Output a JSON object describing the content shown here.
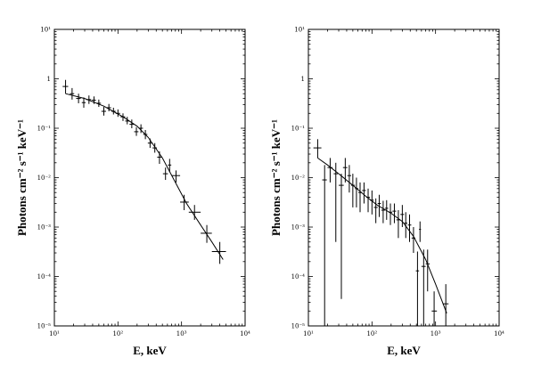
{
  "chart_data": [
    {
      "type": "scatter",
      "title": "",
      "xlabel": "E, keV",
      "ylabel": "Photons cm⁻² s⁻¹ keV⁻¹",
      "xscale": "log",
      "yscale": "log",
      "xlim": [
        10,
        10000
      ],
      "ylim": [
        1e-05,
        10
      ],
      "x_ticks": [
        {
          "label": "10¹"
        },
        {
          "label": "10²"
        },
        {
          "label": "10³"
        },
        {
          "label": "10⁴"
        }
      ],
      "y_ticks": [
        {
          "label": "10⁻⁵"
        },
        {
          "label": "10⁻⁴"
        },
        {
          "label": "10⁻³"
        },
        {
          "label": "10⁻²"
        },
        {
          "label": "10⁻¹"
        },
        {
          "label": "1"
        },
        {
          "label": "10¹"
        }
      ],
      "grid": false,
      "model": [
        {
          "x": 15,
          "y": 0.5
        },
        {
          "x": 30,
          "y": 0.4
        },
        {
          "x": 60,
          "y": 0.28
        },
        {
          "x": 120,
          "y": 0.17
        },
        {
          "x": 200,
          "y": 0.11
        },
        {
          "x": 300,
          "y": 0.065
        },
        {
          "x": 500,
          "y": 0.025
        },
        {
          "x": 800,
          "y": 0.008
        },
        {
          "x": 1200,
          "y": 0.003
        },
        {
          "x": 2000,
          "y": 0.0011
        },
        {
          "x": 3000,
          "y": 0.0005
        },
        {
          "x": 4500,
          "y": 0.00022
        }
      ],
      "points": [
        {
          "x": 15,
          "xlo": 13.5,
          "xhi": 16.5,
          "y": 0.7,
          "ylo": 0.5,
          "yhi": 0.95
        },
        {
          "x": 19,
          "xlo": 17.5,
          "xhi": 20.5,
          "y": 0.5,
          "ylo": 0.38,
          "yhi": 0.65
        },
        {
          "x": 24,
          "xlo": 22,
          "xhi": 26,
          "y": 0.4,
          "ylo": 0.32,
          "yhi": 0.5
        },
        {
          "x": 29,
          "xlo": 27,
          "xhi": 31,
          "y": 0.33,
          "ylo": 0.26,
          "yhi": 0.42
        },
        {
          "x": 35,
          "xlo": 32,
          "xhi": 38,
          "y": 0.38,
          "ylo": 0.31,
          "yhi": 0.46
        },
        {
          "x": 42,
          "xlo": 39,
          "xhi": 45,
          "y": 0.37,
          "ylo": 0.31,
          "yhi": 0.44
        },
        {
          "x": 50,
          "xlo": 46,
          "xhi": 54,
          "y": 0.32,
          "ylo": 0.27,
          "yhi": 0.38
        },
        {
          "x": 60,
          "xlo": 55,
          "xhi": 65,
          "y": 0.22,
          "ylo": 0.18,
          "yhi": 0.27
        },
        {
          "x": 72,
          "xlo": 66,
          "xhi": 78,
          "y": 0.26,
          "ylo": 0.22,
          "yhi": 0.31
        },
        {
          "x": 85,
          "xlo": 79,
          "xhi": 92,
          "y": 0.22,
          "ylo": 0.19,
          "yhi": 0.26
        },
        {
          "x": 100,
          "xlo": 92,
          "xhi": 108,
          "y": 0.2,
          "ylo": 0.17,
          "yhi": 0.24
        },
        {
          "x": 120,
          "xlo": 110,
          "xhi": 130,
          "y": 0.17,
          "ylo": 0.14,
          "yhi": 0.2
        },
        {
          "x": 140,
          "xlo": 130,
          "xhi": 150,
          "y": 0.14,
          "ylo": 0.12,
          "yhi": 0.17
        },
        {
          "x": 165,
          "xlo": 152,
          "xhi": 178,
          "y": 0.12,
          "ylo": 0.1,
          "yhi": 0.15
        },
        {
          "x": 195,
          "xlo": 180,
          "xhi": 210,
          "y": 0.085,
          "ylo": 0.07,
          "yhi": 0.105
        },
        {
          "x": 230,
          "xlo": 212,
          "xhi": 248,
          "y": 0.1,
          "ylo": 0.08,
          "yhi": 0.12
        },
        {
          "x": 270,
          "xlo": 250,
          "xhi": 290,
          "y": 0.075,
          "ylo": 0.06,
          "yhi": 0.092
        },
        {
          "x": 320,
          "xlo": 295,
          "xhi": 345,
          "y": 0.05,
          "ylo": 0.04,
          "yhi": 0.062
        },
        {
          "x": 380,
          "xlo": 350,
          "xhi": 410,
          "y": 0.04,
          "ylo": 0.032,
          "yhi": 0.05
        },
        {
          "x": 450,
          "xlo": 415,
          "xhi": 490,
          "y": 0.026,
          "ylo": 0.019,
          "yhi": 0.034
        },
        {
          "x": 560,
          "xlo": 510,
          "xhi": 610,
          "y": 0.012,
          "ylo": 0.009,
          "yhi": 0.016
        },
        {
          "x": 650,
          "xlo": 610,
          "xhi": 690,
          "y": 0.018,
          "ylo": 0.013,
          "yhi": 0.024
        },
        {
          "x": 820,
          "xlo": 700,
          "xhi": 950,
          "y": 0.011,
          "ylo": 0.008,
          "yhi": 0.014
        },
        {
          "x": 1100,
          "xlo": 950,
          "xhi": 1300,
          "y": 0.0032,
          "ylo": 0.0022,
          "yhi": 0.0045
        },
        {
          "x": 1600,
          "xlo": 1300,
          "xhi": 2000,
          "y": 0.002,
          "ylo": 0.0014,
          "yhi": 0.0028
        },
        {
          "x": 2500,
          "xlo": 2000,
          "xhi": 3000,
          "y": 0.00075,
          "ylo": 0.00048,
          "yhi": 0.0011
        },
        {
          "x": 4000,
          "xlo": 3000,
          "xhi": 5000,
          "y": 0.00032,
          "ylo": 0.00018,
          "yhi": 0.0005
        }
      ]
    },
    {
      "type": "scatter",
      "title": "",
      "xlabel": "E, keV",
      "ylabel": "Photons cm⁻² s⁻¹ keV⁻¹",
      "xscale": "log",
      "yscale": "log",
      "xlim": [
        10,
        10000
      ],
      "ylim": [
        1e-05,
        10
      ],
      "x_ticks": [
        {
          "label": "10¹"
        },
        {
          "label": "10²"
        },
        {
          "label": "10³"
        },
        {
          "label": "10⁴"
        }
      ],
      "y_ticks": [
        {
          "label": "10⁻⁵"
        },
        {
          "label": "10⁻⁴"
        },
        {
          "label": "10⁻³"
        },
        {
          "label": "10⁻²"
        },
        {
          "label": "10⁻¹"
        },
        {
          "label": "1"
        },
        {
          "label": "10¹"
        }
      ],
      "grid": false,
      "model": [
        {
          "x": 14,
          "y": 0.025
        },
        {
          "x": 20,
          "y": 0.018
        },
        {
          "x": 30,
          "y": 0.012
        },
        {
          "x": 50,
          "y": 0.007
        },
        {
          "x": 80,
          "y": 0.0042
        },
        {
          "x": 120,
          "y": 0.0028
        },
        {
          "x": 200,
          "y": 0.0019
        },
        {
          "x": 300,
          "y": 0.0013
        },
        {
          "x": 450,
          "y": 0.00065
        },
        {
          "x": 700,
          "y": 0.00022
        },
        {
          "x": 1000,
          "y": 7e-05
        },
        {
          "x": 1500,
          "y": 1.8e-05
        }
      ],
      "points": [
        {
          "x": 14,
          "xlo": 12,
          "xhi": 16,
          "y": 0.04,
          "ylo": 0.025,
          "yhi": 0.06
        },
        {
          "x": 18,
          "xlo": 16.5,
          "xhi": 19.5,
          "y": 0.009,
          "ylo": 1e-05,
          "yhi": 0.018
        },
        {
          "x": 22,
          "xlo": 20,
          "xhi": 24,
          "y": 0.016,
          "ylo": 0.008,
          "yhi": 0.025
        },
        {
          "x": 27,
          "xlo": 25,
          "xhi": 29,
          "y": 0.012,
          "ylo": 0.0005,
          "yhi": 0.02
        },
        {
          "x": 33,
          "xlo": 30,
          "xhi": 36,
          "y": 0.007,
          "ylo": 3.5e-05,
          "yhi": 0.012
        },
        {
          "x": 38,
          "xlo": 35,
          "xhi": 41,
          "y": 0.016,
          "ylo": 0.008,
          "yhi": 0.025
        },
        {
          "x": 44,
          "xlo": 41,
          "xhi": 47,
          "y": 0.011,
          "ylo": 0.005,
          "yhi": 0.018
        },
        {
          "x": 50,
          "xlo": 47,
          "xhi": 54,
          "y": 0.007,
          "ylo": 0.0025,
          "yhi": 0.012
        },
        {
          "x": 57,
          "xlo": 54,
          "xhi": 61,
          "y": 0.006,
          "ylo": 0.0025,
          "yhi": 0.01
        },
        {
          "x": 65,
          "xlo": 61,
          "xhi": 70,
          "y": 0.005,
          "ylo": 0.002,
          "yhi": 0.008
        },
        {
          "x": 75,
          "xlo": 70,
          "xhi": 80,
          "y": 0.0055,
          "ylo": 0.003,
          "yhi": 0.008
        },
        {
          "x": 87,
          "xlo": 81,
          "xhi": 93,
          "y": 0.004,
          "ylo": 0.002,
          "yhi": 0.006
        },
        {
          "x": 100,
          "xlo": 93,
          "xhi": 107,
          "y": 0.0035,
          "ylo": 0.0018,
          "yhi": 0.0055
        },
        {
          "x": 115,
          "xlo": 107,
          "xhi": 123,
          "y": 0.0025,
          "ylo": 0.0012,
          "yhi": 0.0038
        },
        {
          "x": 130,
          "xlo": 123,
          "xhi": 138,
          "y": 0.003,
          "ylo": 0.0016,
          "yhi": 0.0045
        },
        {
          "x": 150,
          "xlo": 140,
          "xhi": 160,
          "y": 0.0022,
          "ylo": 0.0012,
          "yhi": 0.0034
        },
        {
          "x": 170,
          "xlo": 160,
          "xhi": 180,
          "y": 0.0024,
          "ylo": 0.0014,
          "yhi": 0.0035
        },
        {
          "x": 195,
          "xlo": 182,
          "xhi": 208,
          "y": 0.002,
          "ylo": 0.0011,
          "yhi": 0.003
        },
        {
          "x": 225,
          "xlo": 210,
          "xhi": 240,
          "y": 0.0021,
          "ylo": 0.0012,
          "yhi": 0.003
        },
        {
          "x": 260,
          "xlo": 242,
          "xhi": 278,
          "y": 0.0014,
          "ylo": 0.0006,
          "yhi": 0.0022
        },
        {
          "x": 300,
          "xlo": 280,
          "xhi": 320,
          "y": 0.0018,
          "ylo": 0.001,
          "yhi": 0.0028
        },
        {
          "x": 340,
          "xlo": 322,
          "xhi": 360,
          "y": 0.0012,
          "ylo": 0.0006,
          "yhi": 0.002
        },
        {
          "x": 390,
          "xlo": 365,
          "xhi": 415,
          "y": 0.0011,
          "ylo": 0.0005,
          "yhi": 0.0018
        },
        {
          "x": 450,
          "xlo": 420,
          "xhi": 480,
          "y": 0.0006,
          "ylo": 0.0003,
          "yhi": 0.001
        },
        {
          "x": 520,
          "xlo": 490,
          "xhi": 550,
          "y": 0.00013,
          "ylo": 1e-05,
          "yhi": 0.00032
        },
        {
          "x": 570,
          "xlo": 550,
          "xhi": 590,
          "y": 0.0009,
          "ylo": 0.0005,
          "yhi": 0.0013
        },
        {
          "x": 650,
          "xlo": 600,
          "xhi": 700,
          "y": 0.00016,
          "ylo": 1e-05,
          "yhi": 0.00035
        },
        {
          "x": 750,
          "xlo": 700,
          "xhi": 810,
          "y": 0.00018,
          "ylo": 5e-05,
          "yhi": 0.00035
        },
        {
          "x": 950,
          "xlo": 870,
          "xhi": 1050,
          "y": 2e-05,
          "ylo": 1e-05,
          "yhi": 5e-05
        },
        {
          "x": 1450,
          "xlo": 1300,
          "xhi": 1600,
          "y": 2.8e-05,
          "ylo": 1e-05,
          "yhi": 7e-05
        }
      ]
    }
  ]
}
